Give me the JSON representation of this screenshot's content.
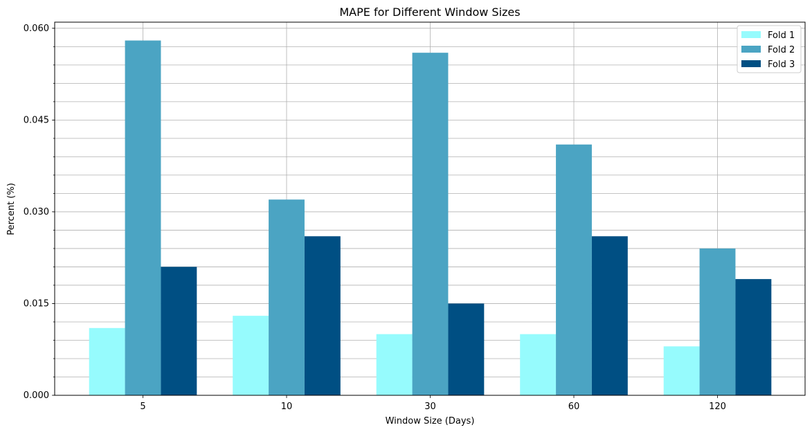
{
  "chart_data": {
    "type": "bar",
    "title": "MAPE for Different Window Sizes",
    "xlabel": "Window Size (Days)",
    "ylabel": "Percent (%)",
    "categories": [
      "5",
      "10",
      "30",
      "60",
      "120"
    ],
    "series": [
      {
        "name": "Fold 1",
        "color": "#96fbfd",
        "values": [
          0.011,
          0.013,
          0.01,
          0.01,
          0.008
        ]
      },
      {
        "name": "Fold 2",
        "color": "#4ba4c3",
        "values": [
          0.058,
          0.032,
          0.056,
          0.041,
          0.024
        ]
      },
      {
        "name": "Fold 3",
        "color": "#004f83",
        "values": [
          0.021,
          0.026,
          0.015,
          0.026,
          0.019
        ]
      }
    ],
    "ylim": [
      0,
      0.061
    ],
    "yticks": [
      "0.000",
      "0.015",
      "0.030",
      "0.045",
      "0.060"
    ],
    "ytick_values": [
      0,
      0.015,
      0.03,
      0.045,
      0.06
    ],
    "y_minor_step": 0.003,
    "grid": true,
    "legend_position": "top-right"
  }
}
